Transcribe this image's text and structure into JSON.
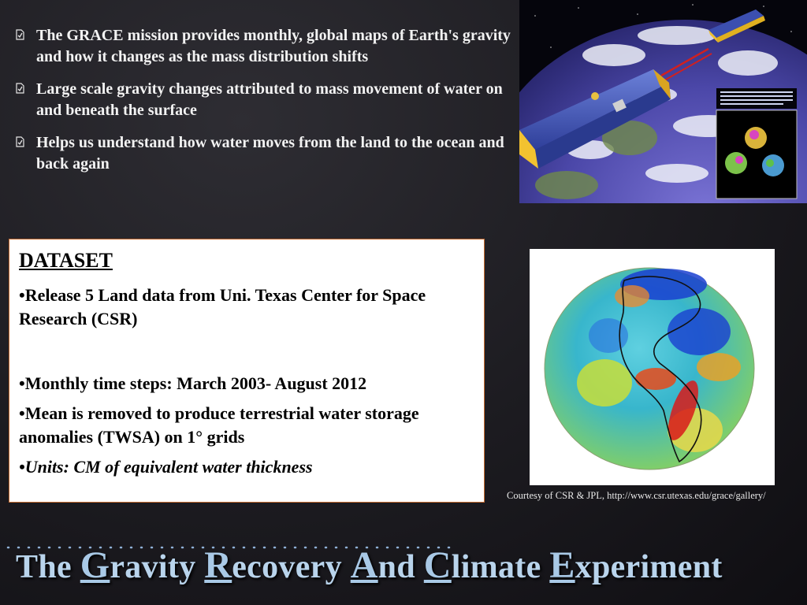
{
  "bullets": [
    "The GRACE mission provides monthly, global maps of Earth's gravity and how it changes as the mass distribution shifts",
    "Large scale gravity changes attributed to mass movement of water on and beneath the surface",
    "Helps us understand how water moves from the land to the ocean and back again"
  ],
  "bullet_icon": "document-check-icon",
  "dataset": {
    "heading": "DATASET",
    "items": [
      "•Release 5 Land data from Uni. Texas Center for Space Research (CSR)",
      "•Monthly time steps: March 2003- August 2012",
      "•Mean is removed to produce terrestrial water storage anomalies (TWSA) on 1°  grids",
      "•Units: CM of equivalent water thickness"
    ]
  },
  "satellite_image": {
    "inset_text": "GRACE will map the \"lumps\" (shown in the simulated balls) in Earth's gravity field that are due to uneven distribution of mass inside Earth."
  },
  "globe_caption": "Courtesy of CSR & JPL, http://www.csr.utexas.edu/grace/gallery/",
  "title": {
    "p1": "The ",
    "c1": "G",
    "p2": "ravity ",
    "c2": "R",
    "p3": "ecovery ",
    "c3": "A",
    "p4": "nd ",
    "c4": "C",
    "p5": "limate ",
    "c5": "E",
    "p6": "xperiment"
  },
  "colors": {
    "title": "#b9d4ec",
    "box_border": "#c46a2f",
    "background": "#1c1b20"
  }
}
